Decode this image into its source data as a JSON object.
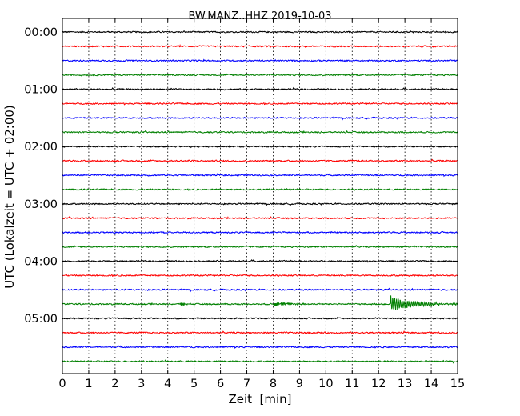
{
  "chart_data": {
    "type": "line",
    "title": "BW.MANZ..HHZ 2019-10-03",
    "xlabel": "Zeit  [min]",
    "ylabel": "UTC (Lokalzeit = UTC + 02:00)",
    "xlim": [
      0,
      15
    ],
    "x_ticks": [
      "0",
      "1",
      "2",
      "3",
      "4",
      "5",
      "6",
      "7",
      "8",
      "9",
      "10",
      "11",
      "12",
      "13",
      "14",
      "15"
    ],
    "y_ticks": [
      "00:00",
      "01:00",
      "02:00",
      "03:00",
      "04:00",
      "05:00"
    ],
    "grid": true,
    "trace_interval_minutes": 15,
    "trace_colors": [
      "#000000",
      "#ff0000",
      "#0000ff",
      "#008000"
    ],
    "series": [
      {
        "start": "00:00",
        "color": "#000000"
      },
      {
        "start": "00:15",
        "color": "#ff0000"
      },
      {
        "start": "00:30",
        "color": "#0000ff"
      },
      {
        "start": "00:45",
        "color": "#008000"
      },
      {
        "start": "01:00",
        "color": "#000000"
      },
      {
        "start": "01:15",
        "color": "#ff0000"
      },
      {
        "start": "01:30",
        "color": "#0000ff"
      },
      {
        "start": "01:45",
        "color": "#008000"
      },
      {
        "start": "02:00",
        "color": "#000000"
      },
      {
        "start": "02:15",
        "color": "#ff0000"
      },
      {
        "start": "02:30",
        "color": "#0000ff"
      },
      {
        "start": "02:45",
        "color": "#008000"
      },
      {
        "start": "03:00",
        "color": "#000000"
      },
      {
        "start": "03:15",
        "color": "#ff0000"
      },
      {
        "start": "03:30",
        "color": "#0000ff"
      },
      {
        "start": "03:45",
        "color": "#008000"
      },
      {
        "start": "04:00",
        "color": "#000000"
      },
      {
        "start": "04:15",
        "color": "#ff0000"
      },
      {
        "start": "04:30",
        "color": "#0000ff"
      },
      {
        "start": "04:45",
        "color": "#008000",
        "events": [
          {
            "t": 4.45,
            "amplitude": 0.9,
            "duration": 0.35
          },
          {
            "t": 8.0,
            "amplitude": 0.8,
            "duration": 1.4
          },
          {
            "t": 12.45,
            "amplitude": 3.2,
            "duration": 2.6
          }
        ]
      },
      {
        "start": "05:00",
        "color": "#000000"
      },
      {
        "start": "05:15",
        "color": "#ff0000"
      },
      {
        "start": "05:30",
        "color": "#0000ff"
      },
      {
        "start": "05:45",
        "color": "#008000"
      }
    ]
  }
}
